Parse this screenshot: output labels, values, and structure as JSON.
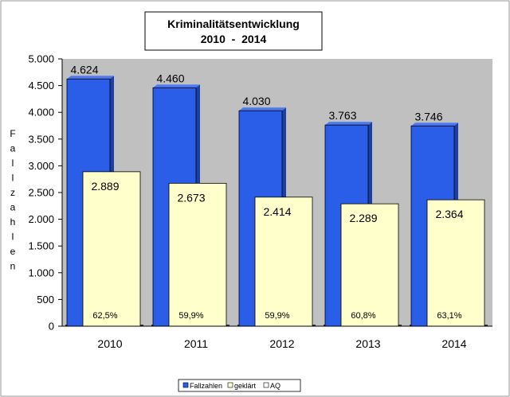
{
  "chart_data": {
    "type": "bar",
    "title_line1": "Kriminalitätsentwicklung",
    "title_line2": "2010  -  2014",
    "ylabel": "Fallzahlen",
    "ylim": [
      0,
      5000
    ],
    "yticks": [
      0,
      500,
      1000,
      1500,
      2000,
      2500,
      3000,
      3500,
      4000,
      4500,
      5000
    ],
    "ytick_labels": [
      "0",
      "500",
      "1.000",
      "1.500",
      "2.000",
      "2.500",
      "3.000",
      "3.500",
      "4.000",
      "4.500",
      "5.000"
    ],
    "grid": false,
    "legend_position": "bottom-right",
    "categories": [
      "2010",
      "2011",
      "2012",
      "2013",
      "2014"
    ],
    "series": [
      {
        "name": "Fallzahlen",
        "values": [
          4624,
          4460,
          4030,
          3763,
          3746
        ],
        "labels": [
          "4.624",
          "4.460",
          "4.030",
          "3.763",
          "3.746"
        ],
        "color": "#2b5ee8"
      },
      {
        "name": "geklärt",
        "values": [
          2889,
          2673,
          2414,
          2289,
          2364
        ],
        "labels": [
          "2.889",
          "2.673",
          "2.414",
          "2.289",
          "2.364"
        ],
        "color": "#ffffcc"
      },
      {
        "name": "AQ",
        "values": [
          62.5,
          59.9,
          59.9,
          60.8,
          63.1
        ],
        "labels": [
          "62,5%",
          "59,9%",
          "59,9%",
          "60,8%",
          "63,1%"
        ],
        "color": "#ffffff"
      }
    ],
    "colors": {
      "plot_background": "#c0c0c0",
      "page_background": "#ffffff"
    }
  }
}
